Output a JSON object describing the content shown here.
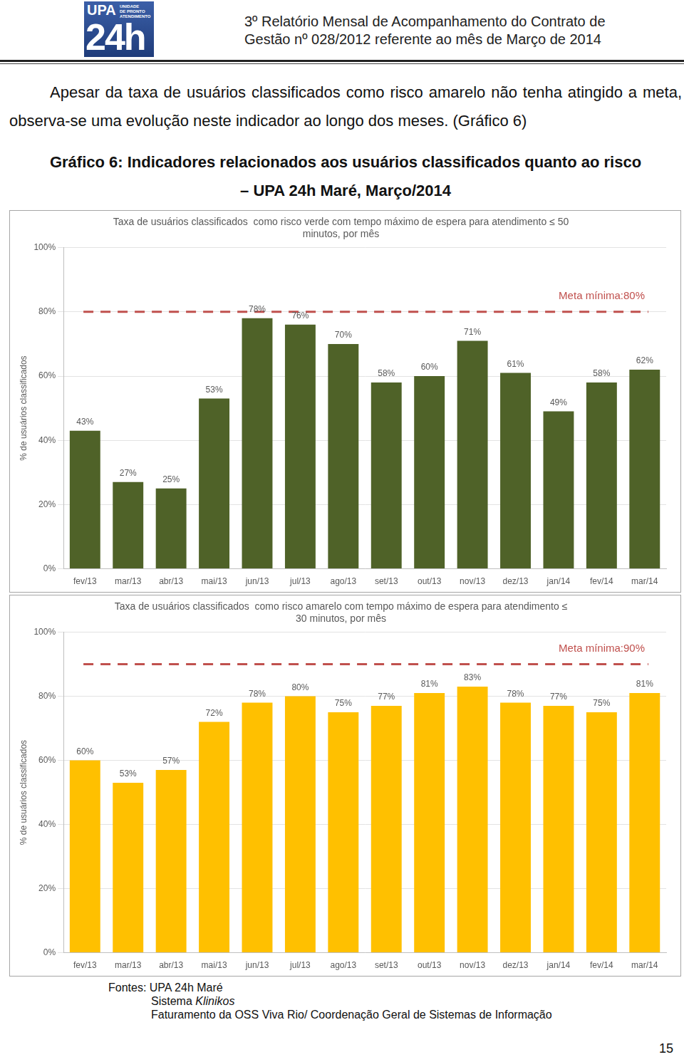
{
  "header": {
    "logo": {
      "brand": "UPA",
      "tagline": [
        "UNIDADE",
        "DE PRONTO",
        "ATENDIMENTO"
      ],
      "hours": "24h"
    },
    "title": [
      "3º Relatório Mensal de Acompanhamento do Contrato de",
      "Gestão nº 028/2012  referente ao mês de Março de 2014"
    ]
  },
  "paragraph": "Apesar da taxa de usuários classificados como risco amarelo não tenha atingido a meta, observa-se uma evolução neste indicador ao longo dos meses. (Gráfico 6)",
  "caption": [
    "Gráfico 6: Indicadores relacionados aos usuários classificados quanto ao risco",
    "– UPA 24h Maré, Março/2014"
  ],
  "chart_data": [
    {
      "type": "bar",
      "title": [
        "Taxa de usuários classificados  como risco verde com tempo máximo de espera para atendimento ≤ 50",
        "minutos, por mês"
      ],
      "y_label": "% de usuários classificados",
      "categories": [
        "fev/13",
        "mar/13",
        "abr/13",
        "mai/13",
        "jun/13",
        "jul/13",
        "ago/13",
        "set/13",
        "out/13",
        "nov/13",
        "dez/13",
        "jan/14",
        "fev/14",
        "mar/14"
      ],
      "values": [
        43,
        27,
        25,
        53,
        78,
        76,
        70,
        58,
        60,
        71,
        61,
        49,
        58,
        62
      ],
      "value_labels": [
        "43%",
        "27%",
        "25%",
        "53%",
        "78%",
        "76%",
        "70%",
        "58%",
        "60%",
        "71%",
        "61%",
        "49%",
        "58%",
        "62%"
      ],
      "color": "#4f6228",
      "ylim": [
        0,
        100
      ],
      "yticks": [
        {
          "value": 0,
          "label": "0%"
        },
        {
          "value": 20,
          "label": "20%"
        },
        {
          "value": 40,
          "label": "40%"
        },
        {
          "value": 60,
          "label": "60%"
        },
        {
          "value": 80,
          "label": "80%"
        },
        {
          "value": 100,
          "label": "100%"
        }
      ],
      "grid": true,
      "data_labels": true,
      "target": {
        "value": 80,
        "label": "Meta mínima:80%",
        "color": "#c0504d"
      }
    },
    {
      "type": "bar",
      "title": [
        "Taxa de usuários classificados  como risco amarelo com tempo máximo de espera para atendimento ≤",
        "30 minutos, por mês"
      ],
      "y_label": "% de usuários classificados",
      "categories": [
        "fev/13",
        "mar/13",
        "abr/13",
        "mai/13",
        "jun/13",
        "jul/13",
        "ago/13",
        "set/13",
        "out/13",
        "nov/13",
        "dez/13",
        "jan/14",
        "fev/14",
        "mar/14"
      ],
      "values": [
        60,
        53,
        57,
        72,
        78,
        80,
        75,
        77,
        81,
        83,
        78,
        77,
        75,
        81
      ],
      "value_labels": [
        "60%",
        "53%",
        "57%",
        "72%",
        "78%",
        "80%",
        "75%",
        "77%",
        "81%",
        "83%",
        "78%",
        "77%",
        "75%",
        "81%"
      ],
      "color": "#ffc000",
      "ylim": [
        0,
        100
      ],
      "yticks": [
        {
          "value": 0,
          "label": "0%"
        },
        {
          "value": 20,
          "label": "20%"
        },
        {
          "value": 40,
          "label": "40%"
        },
        {
          "value": 60,
          "label": "60%"
        },
        {
          "value": 80,
          "label": "80%"
        },
        {
          "value": 100,
          "label": "100%"
        }
      ],
      "grid": true,
      "data_labels": true,
      "target": {
        "value": 90,
        "label": "Meta mínima:90%",
        "color": "#c0504d"
      }
    }
  ],
  "sources": [
    "Fontes: UPA 24h Maré",
    {
      "text": "Sistema",
      "italic": "Klinikos"
    },
    "Faturamento da OSS Viva Rio/ Coordenação Geral de Sistemas de Informação"
  ],
  "page_number": "15"
}
